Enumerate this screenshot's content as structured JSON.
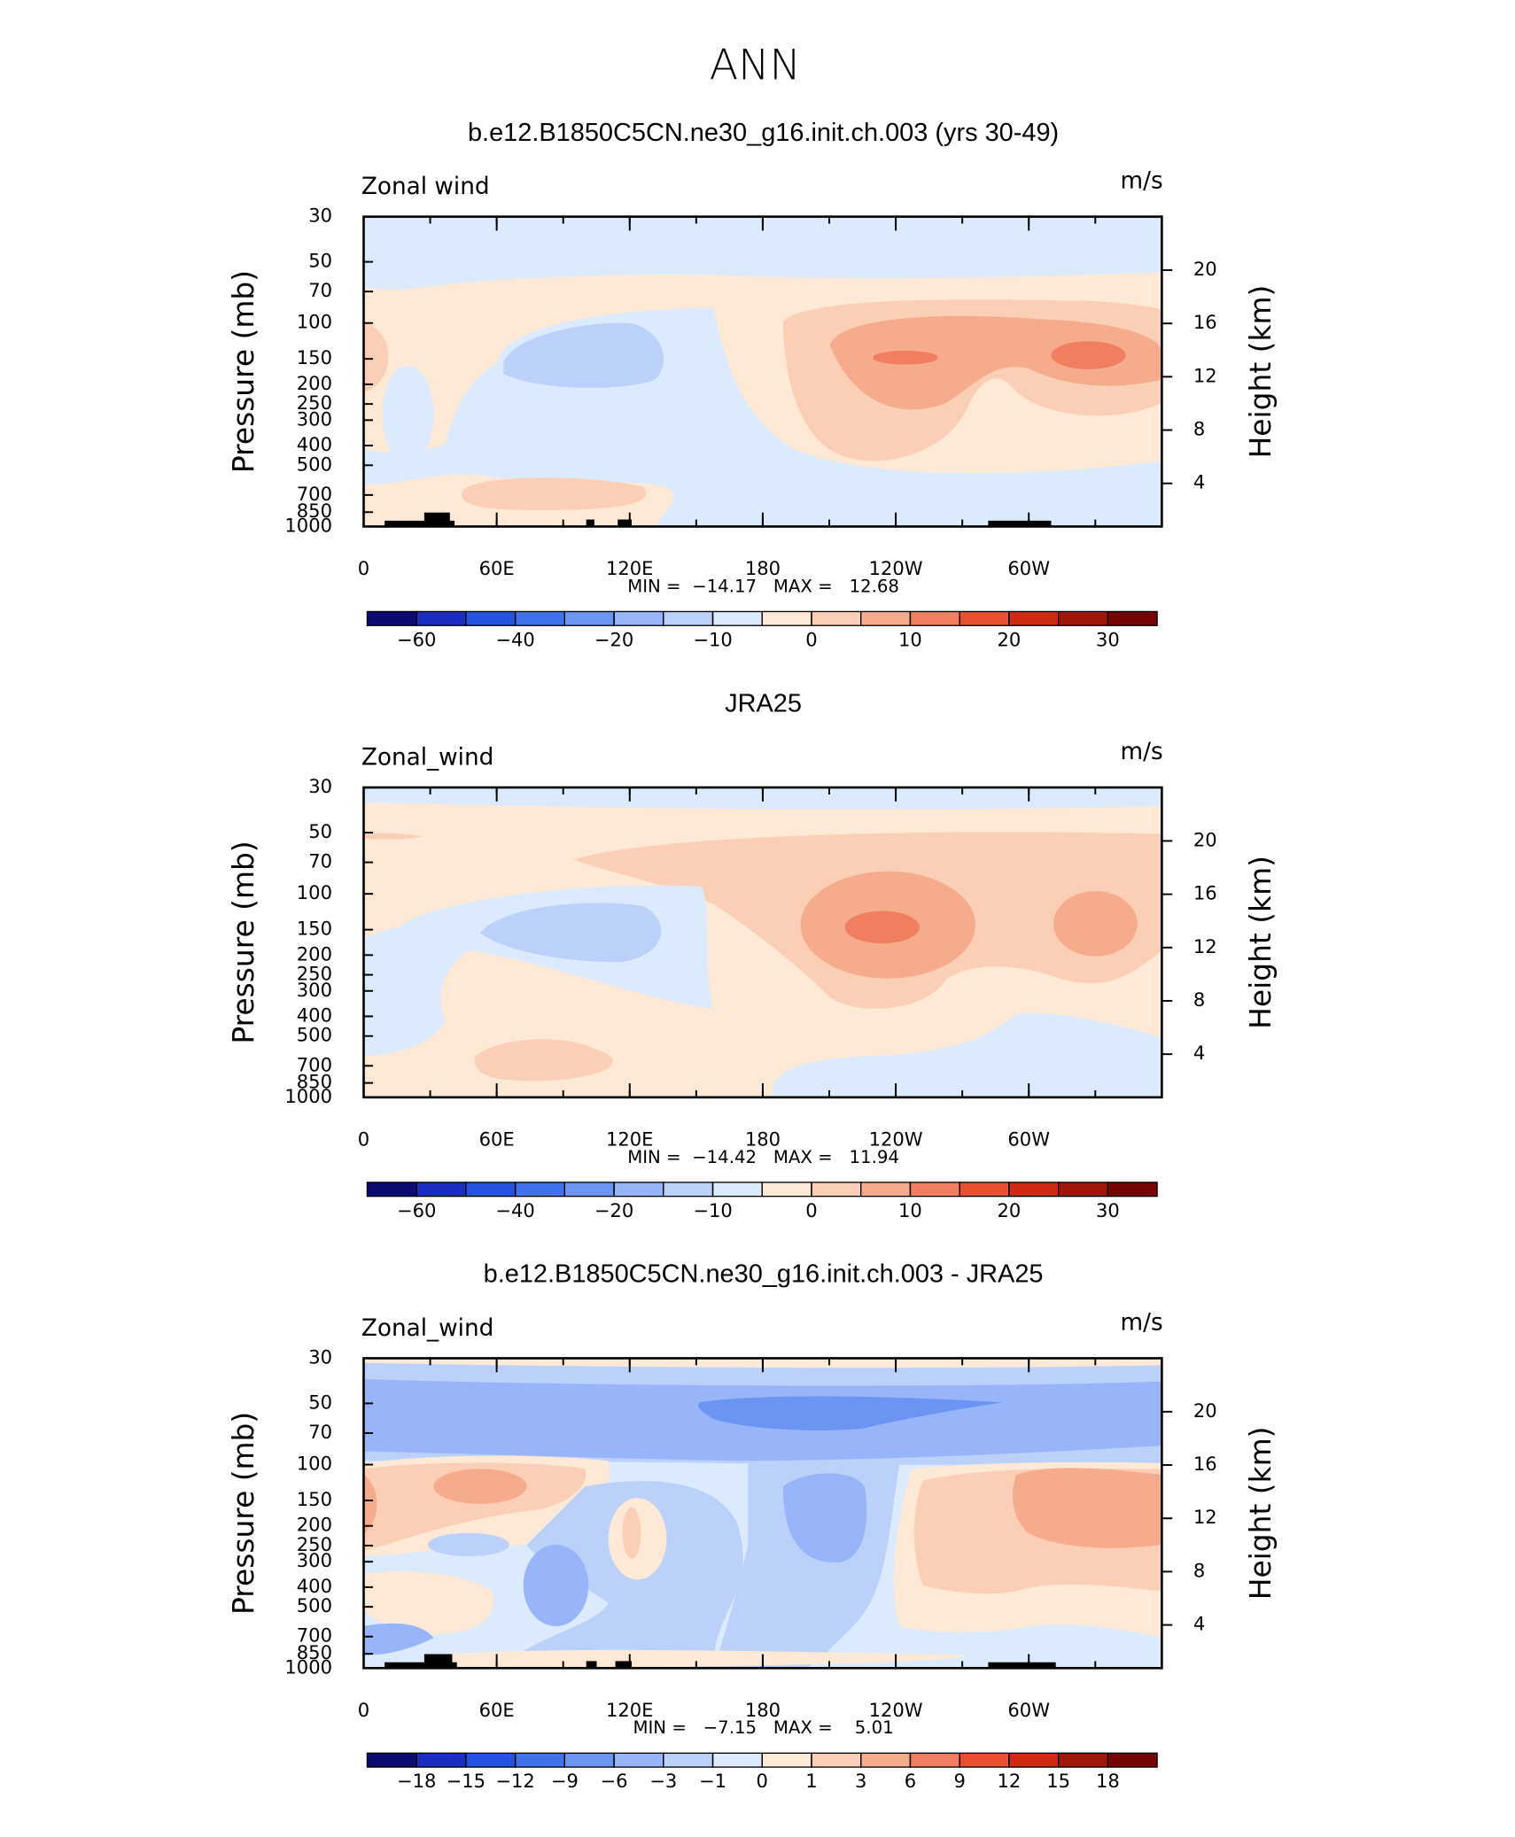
{
  "title": "ANN",
  "chart_data": [
    {
      "type": "contour",
      "title": "b.e12.B1850C5CN.ne30_g16.init.ch.003 (yrs 30-49)",
      "left_label": "Zonal wind",
      "units": "m/s",
      "ylabel": "Pressure (mb)",
      "y2label": "Height (km)",
      "xlim": [
        0,
        360
      ],
      "xticks": [
        0,
        {
          "value": 60,
          "label": "60E"
        },
        {
          "value": 120,
          "label": "120E"
        },
        180,
        {
          "value": 240,
          "label": "120W"
        },
        {
          "value": 300,
          "label": "60W"
        }
      ],
      "ylim": [
        1000,
        30
      ],
      "yscale": "log",
      "yticks": [
        30,
        50,
        70,
        100,
        150,
        200,
        250,
        300,
        400,
        500,
        700,
        850,
        1000
      ],
      "y2ticks": [
        4,
        8,
        12,
        16,
        20
      ],
      "stats": "MIN =  −14.17   MAX =   12.68",
      "colorbar": {
        "levels": [
          {
            "value": -60,
            "label": "−60"
          },
          null,
          {
            "value": -40,
            "label": "−40"
          },
          null,
          {
            "value": -20,
            "label": "−20"
          },
          null,
          {
            "value": -10,
            "label": "−10"
          },
          null,
          0,
          null,
          10,
          null,
          20,
          null,
          30
        ],
        "colors": [
          "#0b0b73",
          "#1a2fbf",
          "#2453e0",
          "#3f73ed",
          "#6c94f2",
          "#97b5f8",
          "#bbd1fa",
          "#dbeafc",
          "#fde9d6",
          "#fbcfb6",
          "#f6ab8c",
          "#f07f5f",
          "#e85030",
          "#cf2b12",
          "#a3160a",
          "#750404"
        ]
      }
    },
    {
      "type": "contour",
      "title": "JRA25",
      "left_label": "Zonal_wind",
      "units": "m/s",
      "ylabel": "Pressure (mb)",
      "y2label": "Height (km)",
      "xlim": [
        0,
        360
      ],
      "xticks": [
        0,
        {
          "value": 60,
          "label": "60E"
        },
        {
          "value": 120,
          "label": "120E"
        },
        180,
        {
          "value": 240,
          "label": "120W"
        },
        {
          "value": 300,
          "label": "60W"
        }
      ],
      "ylim": [
        1000,
        30
      ],
      "yscale": "log",
      "yticks": [
        30,
        50,
        70,
        100,
        150,
        200,
        250,
        300,
        400,
        500,
        700,
        850,
        1000
      ],
      "y2ticks": [
        4,
        8,
        12,
        16,
        20
      ],
      "stats": "MIN =  −14.42   MAX =   11.94",
      "colorbar": {
        "levels": [
          {
            "value": -60,
            "label": "−60"
          },
          null,
          {
            "value": -40,
            "label": "−40"
          },
          null,
          {
            "value": -20,
            "label": "−20"
          },
          null,
          {
            "value": -10,
            "label": "−10"
          },
          null,
          0,
          null,
          10,
          null,
          20,
          null,
          30
        ],
        "colors": [
          "#0b0b73",
          "#1a2fbf",
          "#2453e0",
          "#3f73ed",
          "#6c94f2",
          "#97b5f8",
          "#bbd1fa",
          "#dbeafc",
          "#fde9d6",
          "#fbcfb6",
          "#f6ab8c",
          "#f07f5f",
          "#e85030",
          "#cf2b12",
          "#a3160a",
          "#750404"
        ]
      }
    },
    {
      "type": "contour",
      "title": "b.e12.B1850C5CN.ne30_g16.init.ch.003 - JRA25",
      "left_label": "Zonal_wind",
      "units": "m/s",
      "ylabel": "Pressure (mb)",
      "y2label": "Height (km)",
      "xlim": [
        0,
        360
      ],
      "xticks": [
        0,
        {
          "value": 60,
          "label": "60E"
        },
        {
          "value": 120,
          "label": "120E"
        },
        180,
        {
          "value": 240,
          "label": "120W"
        },
        {
          "value": 300,
          "label": "60W"
        }
      ],
      "ylim": [
        1000,
        30
      ],
      "yscale": "log",
      "yticks": [
        30,
        50,
        70,
        100,
        150,
        200,
        250,
        300,
        400,
        500,
        700,
        850,
        1000
      ],
      "y2ticks": [
        4,
        8,
        12,
        16,
        20
      ],
      "stats": "MIN =   −7.15   MAX =    5.01",
      "colorbar": {
        "levels": [
          {
            "value": -18,
            "label": "−18"
          },
          {
            "value": -15,
            "label": "−15"
          },
          {
            "value": -12,
            "label": "−12"
          },
          {
            "value": -9,
            "label": "−9"
          },
          {
            "value": -6,
            "label": "−6"
          },
          {
            "value": -3,
            "label": "−3"
          },
          {
            "value": -1,
            "label": "−1"
          },
          0,
          1,
          3,
          6,
          9,
          12,
          15,
          18
        ],
        "colors": [
          "#0b0b73",
          "#1a2fbf",
          "#2453e0",
          "#3f73ed",
          "#6c94f2",
          "#97b5f8",
          "#bbd1fa",
          "#dbeafc",
          "#fde9d6",
          "#fbcfb6",
          "#f6ab8c",
          "#f07f5f",
          "#e85030",
          "#cf2b12",
          "#a3160a",
          "#750404"
        ]
      }
    }
  ]
}
